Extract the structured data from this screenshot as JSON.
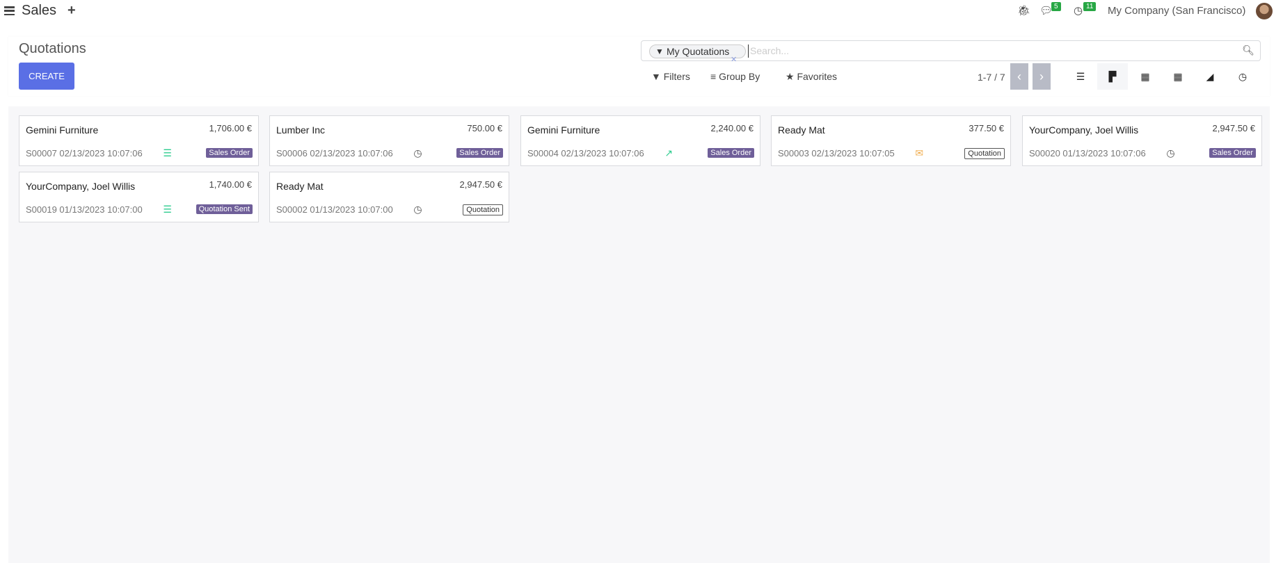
{
  "topbar": {
    "app_name": "Sales",
    "plus": "+",
    "messages_count": "5",
    "activities_count": "11",
    "company": "My Company (San Francisco)"
  },
  "header": {
    "title": "Quotations",
    "create_label": "CREATE"
  },
  "search": {
    "facet": "My Quotations",
    "placeholder": "Search...",
    "value": ""
  },
  "controls": {
    "filters": "Filters",
    "group_by": "Group By",
    "favorites": "Favorites",
    "pager": "1-7 / 7"
  },
  "views": [
    "list",
    "kanban",
    "calendar",
    "pivot",
    "graph",
    "activity"
  ],
  "active_view": "kanban",
  "colors": {
    "accent": "#5a6fe5",
    "tag": "#6f5f99",
    "badge": "#28a745"
  },
  "cards": [
    {
      "name": "Gemini Furniture",
      "amount": "1,706.00 €",
      "ref": "S00007 02/13/2023 10:07:06",
      "icon": "server-icon",
      "icon_color": "#2ecc8f",
      "status": "Sales Order",
      "style": "solid"
    },
    {
      "name": "Lumber Inc",
      "amount": "750.00 €",
      "ref": "S00006 02/13/2023 10:07:06",
      "icon": "clock-icon",
      "icon_color": "#555",
      "status": "Sales Order",
      "style": "solid"
    },
    {
      "name": "Gemini Furniture",
      "amount": "2,240.00 €",
      "ref": "S00004 02/13/2023 10:07:06",
      "icon": "chart-line-icon",
      "icon_color": "#2ecc8f",
      "status": "Sales Order",
      "style": "solid"
    },
    {
      "name": "Ready Mat",
      "amount": "377.50 €",
      "ref": "S00003 02/13/2023 10:07:05",
      "icon": "envelope-icon",
      "icon_color": "#f0ad4e",
      "status": "Quotation",
      "style": "outline"
    },
    {
      "name": "YourCompany, Joel Willis",
      "amount": "2,947.50 €",
      "ref": "S00020 01/13/2023 10:07:06",
      "icon": "clock-icon",
      "icon_color": "#555",
      "status": "Sales Order",
      "style": "solid"
    },
    {
      "name": "YourCompany, Joel Willis",
      "amount": "1,740.00 €",
      "ref": "S00019 01/13/2023 10:07:00",
      "icon": "server-icon",
      "icon_color": "#2ecc8f",
      "status": "Quotation Sent",
      "style": "solid"
    },
    {
      "name": "Ready Mat",
      "amount": "2,947.50 €",
      "ref": "S00002 01/13/2023 10:07:00",
      "icon": "clock-icon",
      "icon_color": "#555",
      "status": "Quotation",
      "style": "outline"
    }
  ]
}
